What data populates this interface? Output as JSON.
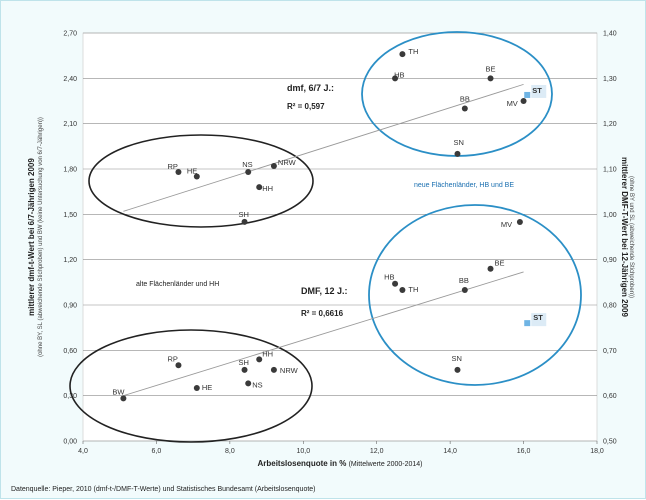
{
  "chart_data": {
    "type": "scatter",
    "xlabel": "Arbeitslosenquote in %",
    "xlabel_note": "(Mittelwerte 2000-2014)",
    "ylabel_left": "mittlerer dmf-t-Wert bei 6/7-Jährigen 2009",
    "ylabel_left_note": "(ohne BY, SL (abweichende Stichproben) und BW (keine Untersuchung von 6/7-Jährigen))",
    "ylabel_right": "mittlerer DMF-T-Wert bei 12-Jährigen 2009",
    "ylabel_right_note": "(ohne BY und SL (abweichende Stichproben))",
    "xlim": [
      4.0,
      18.0
    ],
    "ylim_left": [
      0.0,
      2.7
    ],
    "ylim_right": [
      0.5,
      1.4
    ],
    "x_ticks": [
      "4,0",
      "6,0",
      "8,0",
      "10,0",
      "12,0",
      "14,0",
      "16,0",
      "18,0"
    ],
    "y_left_ticks": [
      "0,00",
      "0,30",
      "0,60",
      "0,90",
      "1,20",
      "1,50",
      "1,80",
      "2,10",
      "2,40",
      "2,70"
    ],
    "y_right_ticks": [
      "0,50",
      "0,60",
      "0,70",
      "0,80",
      "0,90",
      "1,00",
      "1,10",
      "1,20",
      "1,30",
      "1,40"
    ],
    "series": [
      {
        "name": "dmf, 6/7 J.",
        "axis": "left",
        "trendline_label": "dmf, 6/7 J.:",
        "r2": "R² = 0,597",
        "points": [
          {
            "label": "RP",
            "x": 6.6,
            "y": 1.78
          },
          {
            "label": "HE",
            "x": 7.1,
            "y": 1.75
          },
          {
            "label": "NS",
            "x": 8.5,
            "y": 1.78
          },
          {
            "label": "NRW",
            "x": 9.2,
            "y": 1.82
          },
          {
            "label": "HH",
            "x": 8.8,
            "y": 1.68
          },
          {
            "label": "SH",
            "x": 8.4,
            "y": 1.45
          },
          {
            "label": "TH",
            "x": 12.7,
            "y": 2.56
          },
          {
            "label": "HB",
            "x": 12.5,
            "y": 2.4
          },
          {
            "label": "BE",
            "x": 15.1,
            "y": 2.4
          },
          {
            "label": "BB",
            "x": 14.4,
            "y": 2.2
          },
          {
            "label": "MV",
            "x": 16.0,
            "y": 2.25
          },
          {
            "label": "ST",
            "x": 16.1,
            "y": 2.29
          },
          {
            "label": "SN",
            "x": 14.2,
            "y": 1.9
          }
        ],
        "trendline": [
          [
            5.1,
            1.52
          ],
          [
            16.0,
            2.36
          ]
        ]
      },
      {
        "name": "DMF, 12 J.",
        "axis": "right",
        "trendline_label": "DMF, 12 J.:",
        "r2": "R² = 0,6616",
        "points": [
          {
            "label": "BW",
            "x": 5.1,
            "y": 0.594
          },
          {
            "label": "RP",
            "x": 6.6,
            "y": 0.667
          },
          {
            "label": "HE",
            "x": 7.1,
            "y": 0.617
          },
          {
            "label": "SH",
            "x": 8.4,
            "y": 0.657
          },
          {
            "label": "HH",
            "x": 8.8,
            "y": 0.68
          },
          {
            "label": "NS",
            "x": 8.5,
            "y": 0.627
          },
          {
            "label": "NRW",
            "x": 9.2,
            "y": 0.657
          },
          {
            "label": "HB",
            "x": 12.5,
            "y": 0.847
          },
          {
            "label": "TH",
            "x": 12.7,
            "y": 0.833
          },
          {
            "label": "BB",
            "x": 14.4,
            "y": 0.833
          },
          {
            "label": "BE",
            "x": 15.1,
            "y": 0.88
          },
          {
            "label": "MV",
            "x": 15.9,
            "y": 0.983
          },
          {
            "label": "ST",
            "x": 16.1,
            "y": 0.76
          },
          {
            "label": "SN",
            "x": 14.2,
            "y": 0.657
          }
        ],
        "trendline": [
          [
            5.1,
            0.6
          ],
          [
            16.0,
            0.873
          ]
        ]
      }
    ],
    "annotations": {
      "alte": "alte Flächenländer und HH",
      "neue": "neue Flächenländer, HB und BE"
    },
    "grid": true,
    "source": "Datenquelle: Pieper, 2010 (dmf-t-/DMF-T-Werte) und Statistisches Bundesamt (Arbeitslosenquote)"
  },
  "colors": {
    "background": "#f2fbfc",
    "plot_bg": "#ffffff",
    "grid": "#8c8c8c",
    "point": "#3a3a3a",
    "highlight_point": "#6fb4e4",
    "highlight_box": "#dcebf6",
    "circle_old": "#222222",
    "circle_new": "#2b8fc6",
    "trendline": "#9a9a9a"
  }
}
